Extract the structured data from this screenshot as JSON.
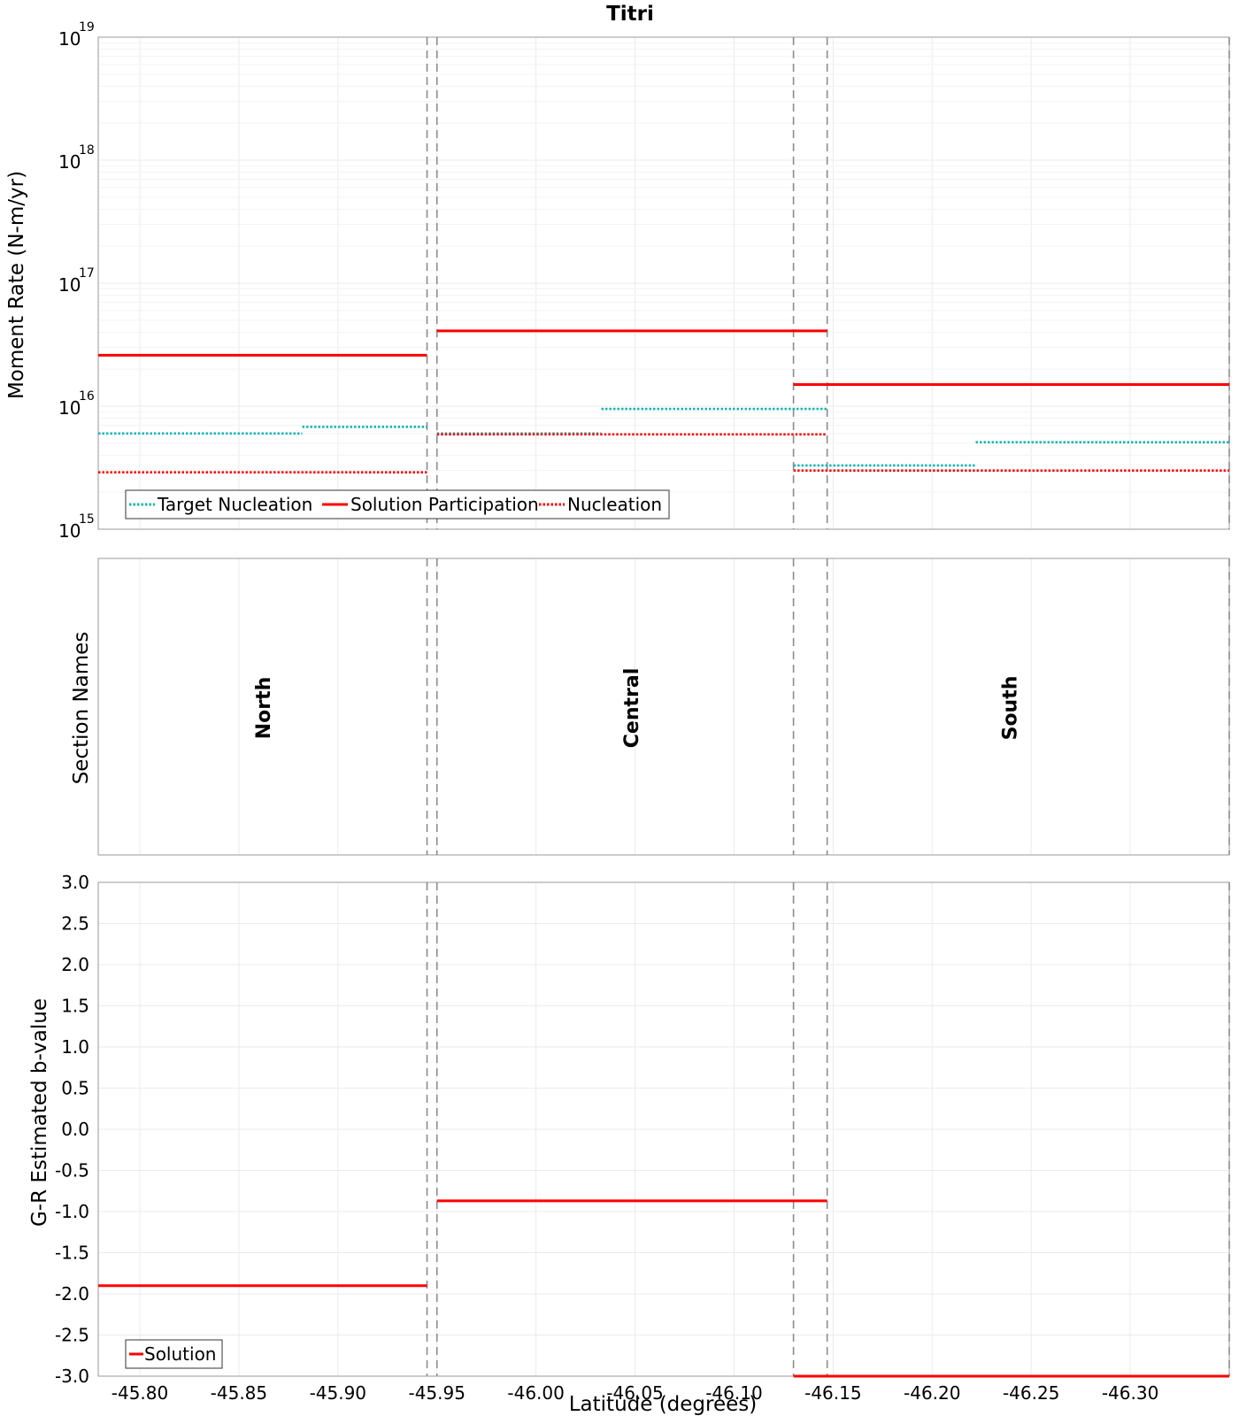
{
  "chart_data": [
    {
      "type": "line",
      "title": "Titri",
      "ylabel": "Moment Rate (N-m/yr)",
      "yscale": "log",
      "ylim": [
        1000000000000000.0,
        1e+19
      ],
      "xlim": [
        -45.779,
        -46.35
      ],
      "y_tick_labels": [
        {
          "base": "10",
          "exp": "15",
          "value": 1000000000000000.0
        },
        {
          "base": "10",
          "exp": "16",
          "value": 1e+16
        },
        {
          "base": "10",
          "exp": "17",
          "value": 1e+17
        },
        {
          "base": "10",
          "exp": "18",
          "value": 1e+18
        },
        {
          "base": "10",
          "exp": "19",
          "value": 1e+19
        }
      ],
      "section_boundaries": [
        -45.945,
        -45.95,
        -46.13,
        -46.147,
        -46.35
      ],
      "legend": {
        "position": "bottom-left",
        "entries": [
          "Target Nucleation",
          "Solution Participation",
          "Nucleation"
        ]
      },
      "series": [
        {
          "name": "Target Nucleation",
          "color": "#17b5b5",
          "style": "dotted",
          "segments": [
            [
              -45.779,
              -45.882,
              6000000000000000.0
            ],
            [
              -45.882,
              -45.945,
              6800000000000000.0
            ],
            [
              -45.95,
              -46.033,
              6000000000000000.0
            ],
            [
              -46.033,
              -46.147,
              9500000000000000.0
            ],
            [
              -46.13,
              -46.222,
              3300000000000000.0
            ],
            [
              -46.222,
              -46.35,
              5100000000000000.0
            ]
          ]
        },
        {
          "name": "Solution Participation",
          "color": "#ff0000",
          "style": "solid",
          "segments": [
            [
              -45.779,
              -45.945,
              2.6e+16
            ],
            [
              -45.95,
              -46.147,
              4.1e+16
            ],
            [
              -46.13,
              -46.35,
              1.5e+16
            ]
          ]
        },
        {
          "name": "Nucleation",
          "color": "#ff0000",
          "style": "dotted",
          "segments": [
            [
              -45.779,
              -45.945,
              2900000000000000.0
            ],
            [
              -45.95,
              -46.147,
              5900000000000000.0
            ],
            [
              -46.13,
              -46.35,
              3000000000000000.0
            ]
          ]
        }
      ]
    },
    {
      "type": "table",
      "ylabel": "Section Names",
      "sections": [
        {
          "name": "North",
          "lat": -45.862
        },
        {
          "name": "Central",
          "lat": -46.048
        },
        {
          "name": "South",
          "lat": -46.239
        }
      ]
    },
    {
      "type": "line",
      "xlabel": "Latitude (degrees)",
      "ylabel": "G-R Estimated b-value",
      "ylim": [
        -3.0,
        3.0
      ],
      "xlim": [
        -45.779,
        -46.35
      ],
      "y_ticks": [
        3.0,
        2.5,
        2.0,
        1.5,
        1.0,
        0.5,
        0.0,
        -0.5,
        -1.0,
        -1.5,
        -2.0,
        -2.5,
        -3.0
      ],
      "y_tick_labels": [
        "3.0",
        "2.5",
        "2.0",
        "1.5",
        "1.0",
        "0.5",
        "0.0",
        "-0.5",
        "-1.0",
        "-1.5",
        "-2.0",
        "-2.5",
        "-3.0"
      ],
      "x_ticks": [
        -45.8,
        -45.85,
        -45.9,
        -45.95,
        -46.0,
        -46.05,
        -46.1,
        -46.15,
        -46.2,
        -46.25,
        -46.3
      ],
      "x_tick_labels": [
        "-45.80",
        "-45.85",
        "-45.90",
        "-45.95",
        "-46.00",
        "-46.05",
        "-46.10",
        "-46.15",
        "-46.20",
        "-46.25",
        "-46.30"
      ],
      "legend": {
        "position": "bottom-left",
        "entries": [
          "Solution"
        ]
      },
      "series": [
        {
          "name": "Solution",
          "color": "#ff0000",
          "style": "solid",
          "segments": [
            [
              -45.779,
              -45.945,
              -1.9
            ],
            [
              -45.95,
              -46.147,
              -0.87
            ],
            [
              -46.13,
              -46.35,
              -3.0
            ]
          ]
        }
      ]
    }
  ]
}
